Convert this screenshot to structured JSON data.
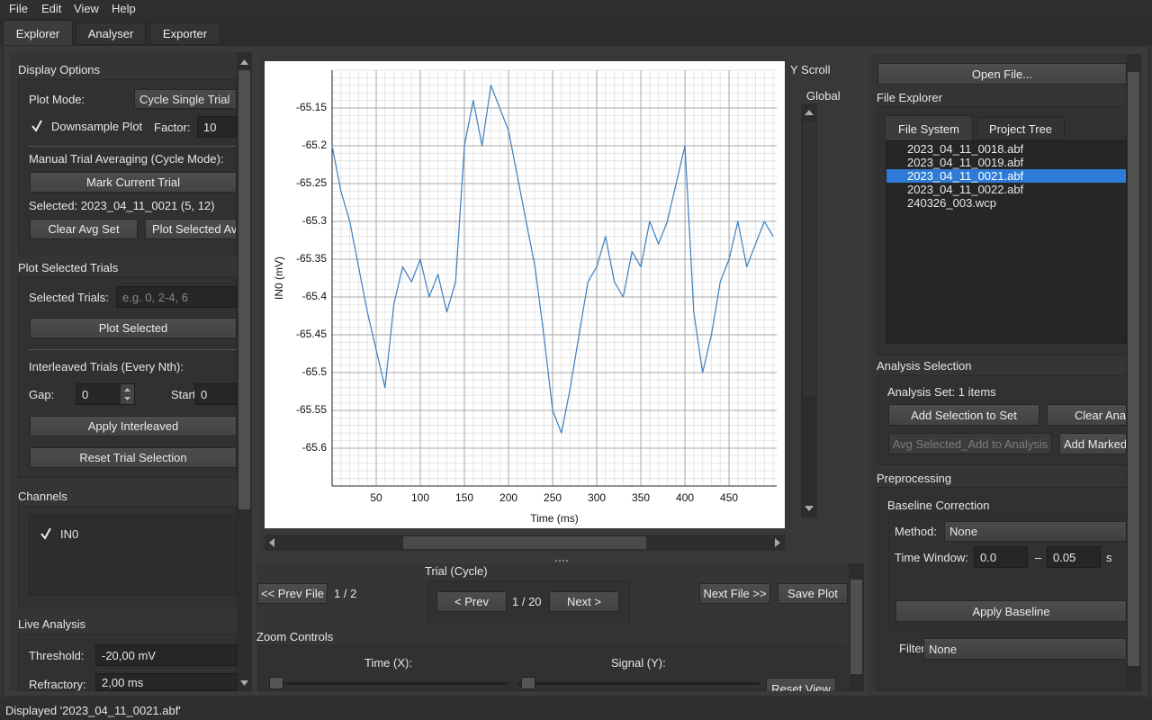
{
  "menu": [
    "File",
    "Edit",
    "View",
    "Help"
  ],
  "tabs": [
    "Explorer",
    "Analyser",
    "Exporter"
  ],
  "display_options": {
    "title": "Display Options",
    "plot_mode_label": "Plot Mode:",
    "plot_mode": "Cycle Single Trial",
    "downsample": "Downsample Plot",
    "factor_label": "Factor:",
    "factor": "10",
    "manual_avg": "Manual Trial Averaging (Cycle Mode):",
    "mark_btn": "Mark Current Trial",
    "selected": "Selected: 2023_04_11_0021 (5, 12)",
    "clear_btn": "Clear Avg Set",
    "plot_avg_btn": "Plot Selected Av"
  },
  "plot_selected": {
    "title": "Plot Selected Trials",
    "trials_label": "Selected Trials:",
    "trials_placeholder": "e.g. 0, 2-4, 6",
    "plot_btn": "Plot Selected",
    "interleaved": "Interleaved Trials (Every Nth):",
    "gap_label": "Gap:",
    "gap": "0",
    "start_label": "Start:",
    "start": "0",
    "apply_btn": "Apply Interleaved",
    "reset_btn": "Reset Trial Selection"
  },
  "channels": {
    "title": "Channels",
    "items": [
      "IN0"
    ]
  },
  "live": {
    "title": "Live Analysis",
    "threshold_label": "Threshold:",
    "threshold": "-20,00 mV",
    "refractory_label": "Refractory:",
    "refractory": "2,00 ms"
  },
  "chart_data": {
    "type": "line",
    "xlabel": "Time (ms)",
    "ylabel": "IN0 (mV)",
    "color": "#3a7fc0",
    "grid": true,
    "xlim": [
      0,
      504
    ],
    "ylim": [
      -65.65,
      -65.1
    ],
    "xticks": [
      50,
      100,
      150,
      200,
      250,
      300,
      350,
      400,
      450
    ],
    "yticks": [
      -65.15,
      -65.2,
      -65.25,
      -65.3,
      -65.35,
      -65.4,
      -65.45,
      -65.5,
      -65.55,
      -65.6
    ],
    "x": [
      0,
      10,
      20,
      30,
      40,
      50,
      60,
      70,
      80,
      90,
      100,
      110,
      120,
      130,
      140,
      150,
      160,
      170,
      180,
      190,
      200,
      210,
      220,
      230,
      240,
      250,
      260,
      270,
      280,
      290,
      300,
      310,
      320,
      330,
      340,
      350,
      360,
      370,
      380,
      390,
      400,
      410,
      420,
      430,
      440,
      450,
      460,
      470,
      480,
      490,
      500
    ],
    "values": [
      -65.2,
      -65.26,
      -65.3,
      -65.36,
      -65.42,
      -65.47,
      -65.52,
      -65.41,
      -65.36,
      -65.38,
      -65.35,
      -65.4,
      -65.37,
      -65.42,
      -65.38,
      -65.2,
      -65.14,
      -65.2,
      -65.12,
      -65.15,
      -65.18,
      -65.24,
      -65.3,
      -65.36,
      -65.45,
      -65.55,
      -65.58,
      -65.52,
      -65.45,
      -65.38,
      -65.36,
      -65.32,
      -65.38,
      -65.4,
      -65.34,
      -65.36,
      -65.3,
      -65.33,
      -65.3,
      -65.25,
      -65.2,
      -65.42,
      -65.5,
      -65.45,
      -65.38,
      -65.35,
      -65.3,
      -65.36,
      -65.33,
      -65.3,
      -65.32
    ]
  },
  "y_scroll": {
    "title": "Y Scroll",
    "global": "Global"
  },
  "nav": {
    "trial_title": "Trial (Cycle)",
    "prev_file": "<< Prev File",
    "file_count": "1 / 2",
    "prev": "< Prev",
    "trial_count": "1 / 20",
    "next": "Next >",
    "next_file": "Next File >>",
    "save": "Save Plot"
  },
  "zoom": {
    "title": "Zoom Controls",
    "time": "Time (X):",
    "signal": "Signal (Y):",
    "reset": "Reset View"
  },
  "explorer": {
    "open": "Open File...",
    "title": "File Explorer",
    "tabs": [
      "File System",
      "Project Tree"
    ],
    "files": [
      "2023_04_11_0018.abf",
      "2023_04_11_0019.abf",
      "2023_04_11_0021.abf",
      "2023_04_11_0022.abf",
      "240326_003.wcp"
    ]
  },
  "analysis": {
    "title": "Analysis Selection",
    "set": "Analysis Set: 1 items",
    "add": "Add Selection to Set",
    "clear": "Clear Ana",
    "avg": "Avg Selected_Add to Analysis",
    "add_marked": "Add Marked"
  },
  "preprocessing": {
    "title": "Preprocessing",
    "baseline": "Baseline Correction",
    "method_label": "Method:",
    "method": "None",
    "window_label": "Time Window:",
    "t0": "0.0",
    "dash": "–",
    "t1": "0.05",
    "unit": "s",
    "apply": "Apply Baseline",
    "filter_label": "Filter:",
    "filter": "None"
  },
  "status": "Displayed '2023_04_11_0021.abf'"
}
